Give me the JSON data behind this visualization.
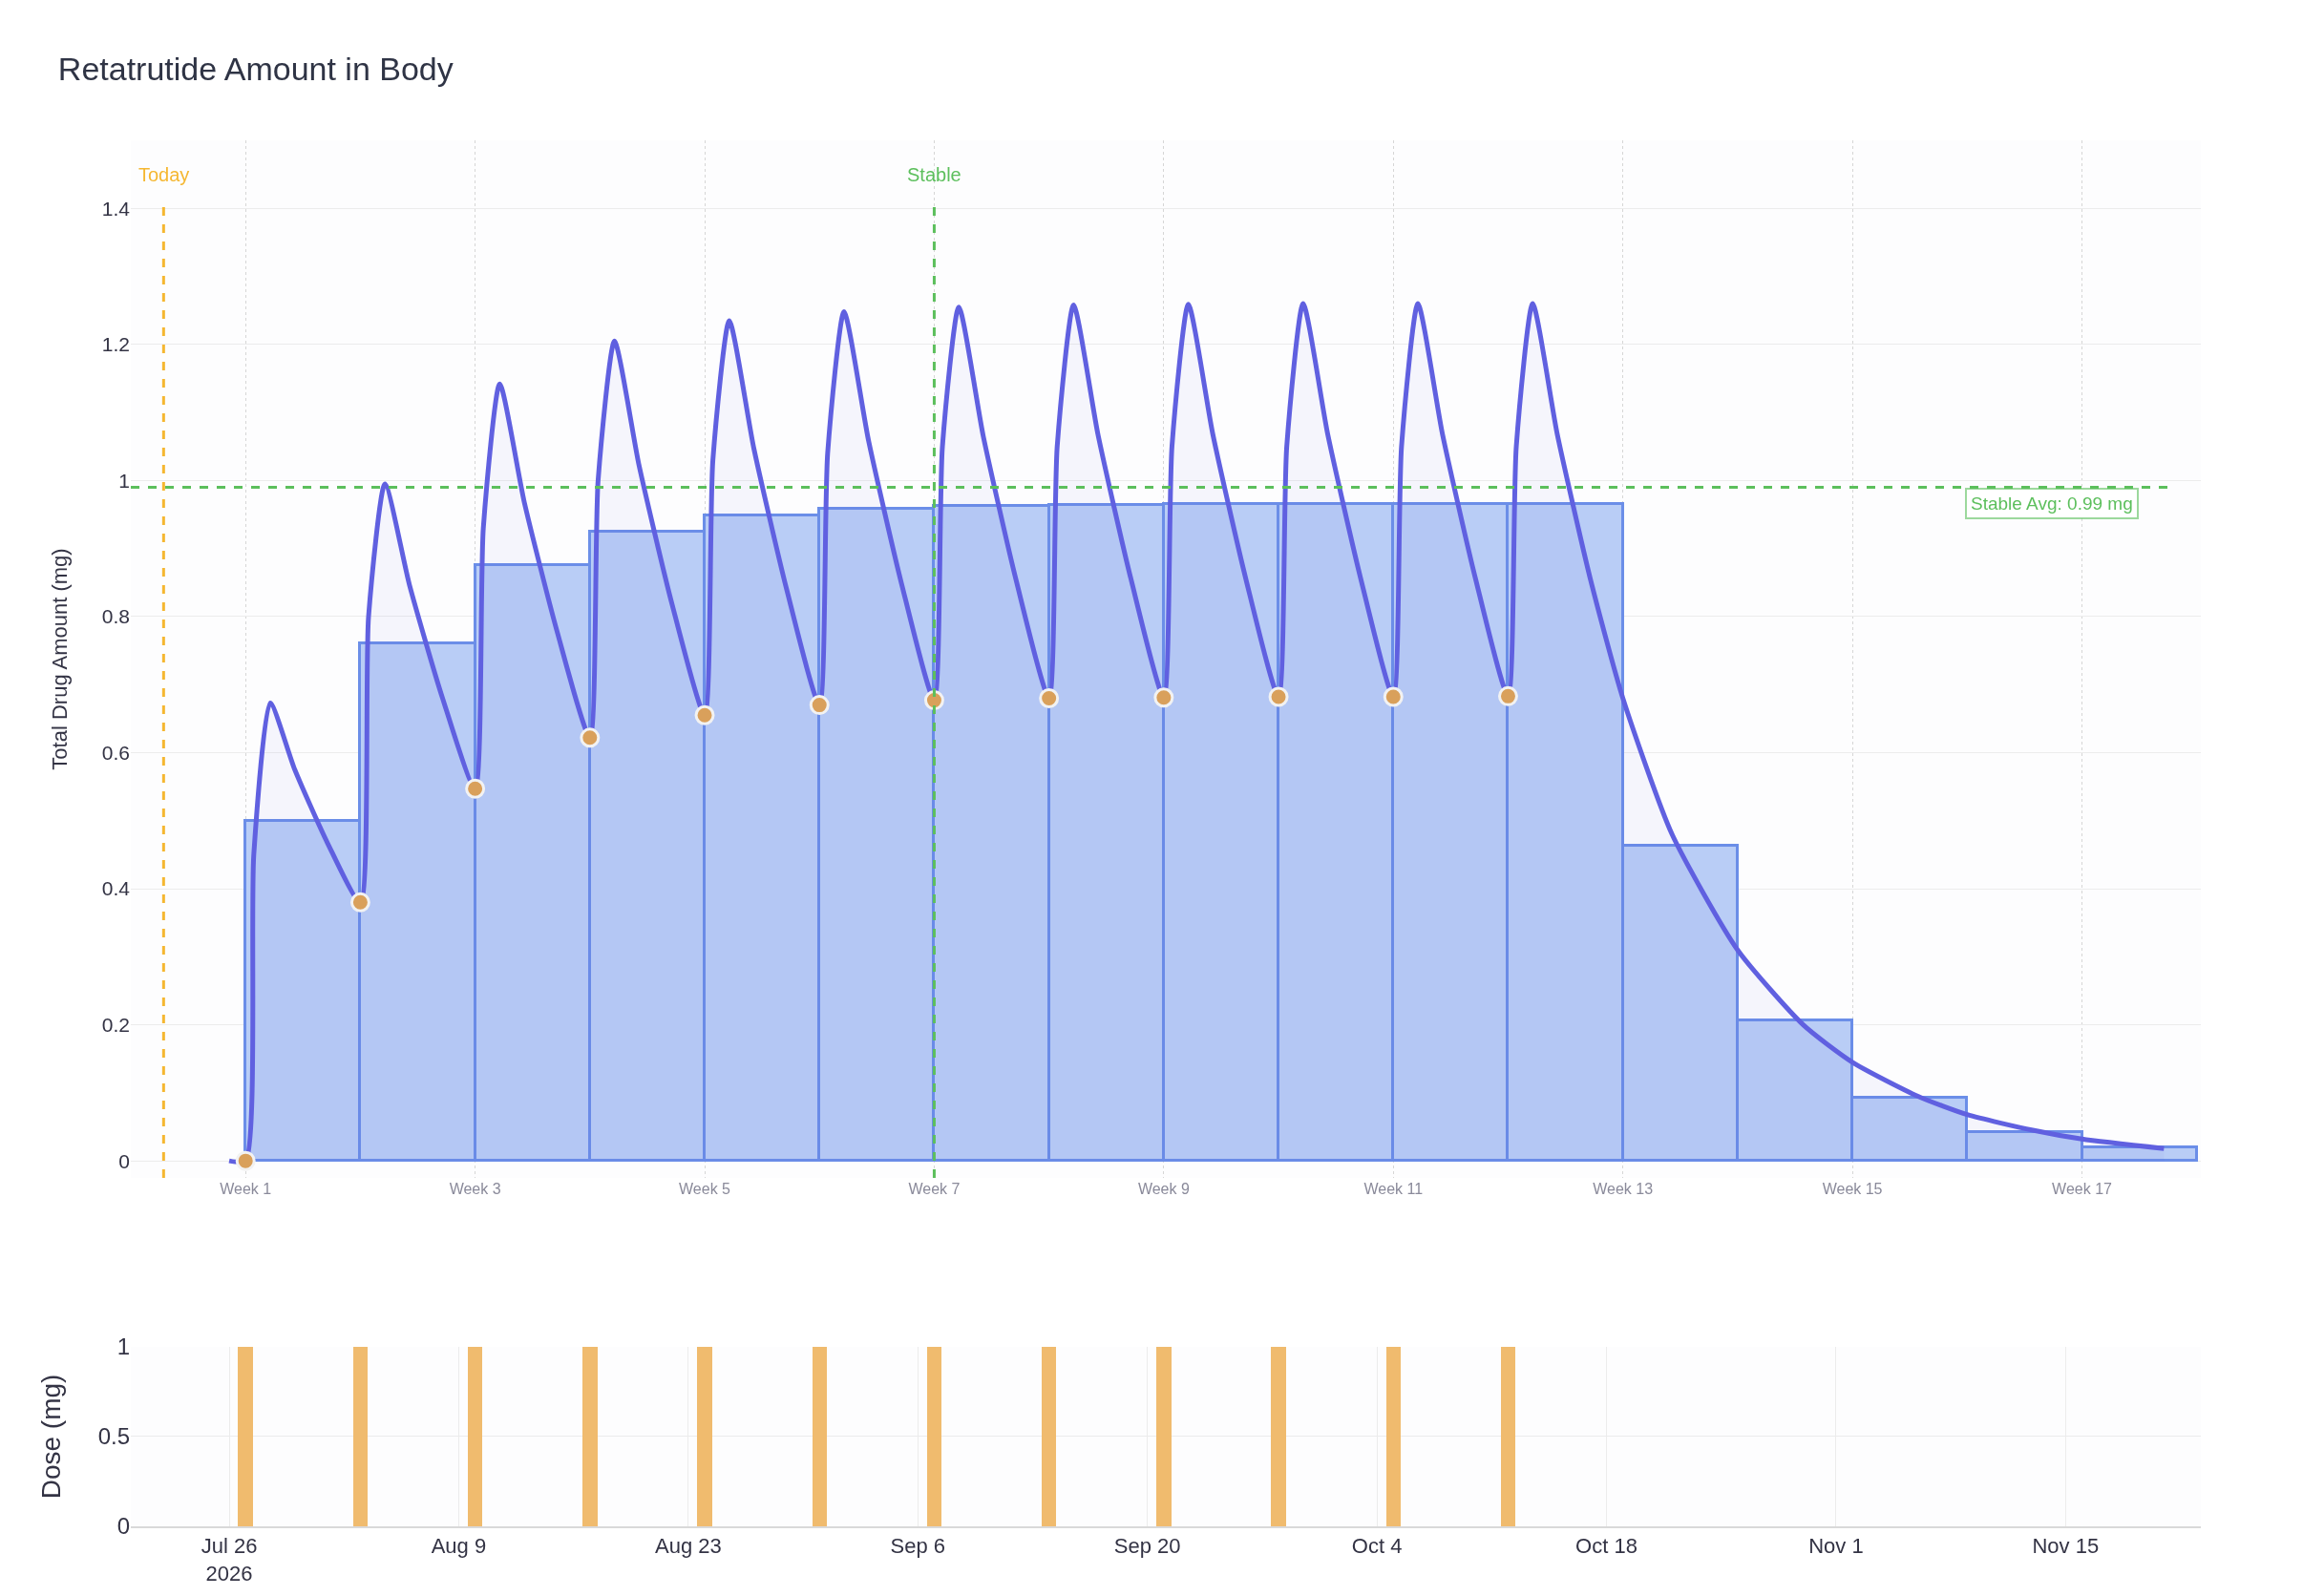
{
  "chart_data": [
    {
      "type": "area",
      "title": "Retatrutide Amount in Body",
      "ylabel": "Total Drug Amount (mg)",
      "xlim": [
        "2026-07-20",
        "2026-11-23T06:00"
      ],
      "ylim": [
        -0.025,
        1.5
      ],
      "xticks": [
        {
          "value": "2026-07-27",
          "label": "Week 1"
        },
        {
          "value": "2026-08-10",
          "label": "Week 3"
        },
        {
          "value": "2026-08-24",
          "label": "Week 5"
        },
        {
          "value": "2026-09-07",
          "label": "Week 7"
        },
        {
          "value": "2026-09-21",
          "label": "Week 9"
        },
        {
          "value": "2026-10-05",
          "label": "Week 11"
        },
        {
          "value": "2026-10-19",
          "label": "Week 13"
        },
        {
          "value": "2026-11-02",
          "label": "Week 15"
        },
        {
          "value": "2026-11-16",
          "label": "Week 17"
        }
      ],
      "yticks": [
        0,
        0.2,
        0.4,
        0.6,
        0.8,
        1,
        1.2,
        1.4
      ],
      "grid": true,
      "series": [
        {
          "type": "histogram",
          "color": "#b9cdf6",
          "bins": [
            "2026-07-27",
            "2026-08-03",
            "2026-08-10",
            "2026-08-17",
            "2026-08-24",
            "2026-08-31",
            "2026-09-07",
            "2026-09-14",
            "2026-09-21",
            "2026-09-28",
            "2026-10-05",
            "2026-10-12",
            "2026-10-19",
            "2026-10-26",
            "2026-11-02",
            "2026-11-09",
            "2026-11-16",
            "2026-11-23"
          ],
          "values": [
            0.5,
            0.76,
            0.875,
            0.925,
            0.948,
            0.958,
            0.962,
            0.964,
            0.965,
            0.965,
            0.965,
            0.965,
            0.463,
            0.207,
            0.093,
            0.042,
            0.02
          ]
        },
        {
          "type": "area",
          "color": "#6060e0",
          "x": [
            "2026-07-26",
            "2026-07-27",
            "2026-07-27T12:00",
            "2026-07-28T12:00",
            "2026-07-30",
            "2026-08-01",
            "2026-08-03",
            "2026-08-03T12:00",
            "2026-08-04T12:00",
            "2026-08-06",
            "2026-08-08",
            "2026-08-10",
            "2026-08-10T12:00",
            "2026-08-11T12:00",
            "2026-08-13",
            "2026-08-15",
            "2026-08-17",
            "2026-08-17T12:00",
            "2026-08-18T12:00",
            "2026-08-20",
            "2026-08-22",
            "2026-08-24",
            "2026-08-24T12:00",
            "2026-08-25T12:00",
            "2026-08-27",
            "2026-08-29",
            "2026-08-31",
            "2026-08-31T12:00",
            "2026-09-01T12:00",
            "2026-09-03",
            "2026-09-05",
            "2026-09-07",
            "2026-09-07T12:00",
            "2026-09-08T12:00",
            "2026-09-10",
            "2026-09-12",
            "2026-09-14",
            "2026-09-14T12:00",
            "2026-09-15T12:00",
            "2026-09-17",
            "2026-09-19",
            "2026-09-21",
            "2026-09-21T12:00",
            "2026-09-22T12:00",
            "2026-09-24",
            "2026-09-26",
            "2026-09-28",
            "2026-09-28T12:00",
            "2026-09-29T12:00",
            "2026-10-01",
            "2026-10-03",
            "2026-10-05",
            "2026-10-05T12:00",
            "2026-10-06T12:00",
            "2026-10-08",
            "2026-10-10",
            "2026-10-12",
            "2026-10-12T12:00",
            "2026-10-13T12:00",
            "2026-10-15",
            "2026-10-17",
            "2026-10-19",
            "2026-10-22",
            "2026-10-26",
            "2026-10-30",
            "2026-11-02",
            "2026-11-06",
            "2026-11-09",
            "2026-11-13",
            "2026-11-16",
            "2026-11-21"
          ],
          "values": [
            0,
            0,
            0.45,
            0.673,
            0.575,
            0.467,
            0.38,
            0.8,
            0.995,
            0.846,
            0.681,
            0.547,
            0.93,
            1.142,
            0.968,
            0.778,
            0.622,
            1.0,
            1.205,
            1.022,
            0.819,
            0.655,
            1.03,
            1.235,
            1.047,
            0.84,
            0.67,
            1.04,
            1.248,
            1.058,
            0.849,
            0.677,
            1.05,
            1.255,
            1.064,
            0.853,
            0.68,
            1.05,
            1.258,
            1.066,
            0.855,
            0.681,
            1.05,
            1.259,
            1.067,
            0.856,
            0.682,
            1.05,
            1.26,
            1.068,
            0.857,
            0.682,
            1.05,
            1.26,
            1.068,
            0.857,
            0.683,
            1.05,
            1.26,
            1.068,
            0.857,
            0.68,
            0.48,
            0.31,
            0.2,
            0.145,
            0.095,
            0.068,
            0.045,
            0.032,
            0.018
          ]
        },
        {
          "type": "scatter",
          "color": "#d9a05b",
          "marker": "circle",
          "x": [
            "2026-07-27",
            "2026-08-03",
            "2026-08-10",
            "2026-08-17",
            "2026-08-24",
            "2026-08-31",
            "2026-09-07",
            "2026-09-14",
            "2026-09-21",
            "2026-09-28",
            "2026-10-05",
            "2026-10-12"
          ],
          "values": [
            0,
            0.38,
            0.547,
            0.622,
            0.655,
            0.67,
            0.677,
            0.68,
            0.681,
            0.682,
            0.682,
            0.683
          ]
        }
      ],
      "ref_lines": [
        {
          "axis": "x",
          "value": "2026-07-22",
          "label": "Today",
          "color": "#f5b731",
          "line_style": "dashed"
        },
        {
          "axis": "x",
          "value": "2026-09-07",
          "label": "Stable",
          "color": "#5cbf5c",
          "line_style": "dashed"
        },
        {
          "axis": "y",
          "value": 0.99,
          "label": "Stable Avg: 0.99 mg",
          "color": "#5cbf5c",
          "line_style": "dashed"
        }
      ]
    },
    {
      "type": "bar",
      "ylabel": "Dose (mg)",
      "xlim": [
        "2026-07-20",
        "2026-11-23T06:00"
      ],
      "ylim": [
        0,
        1
      ],
      "xticks": [
        {
          "value": "2026-07-26",
          "label": "Jul 26\n2026"
        },
        {
          "value": "2026-08-09",
          "label": "Aug 9"
        },
        {
          "value": "2026-08-23",
          "label": "Aug 23"
        },
        {
          "value": "2026-09-06",
          "label": "Sep 6"
        },
        {
          "value": "2026-09-20",
          "label": "Sep 20"
        },
        {
          "value": "2026-10-04",
          "label": "Oct 4"
        },
        {
          "value": "2026-10-18",
          "label": "Oct 18"
        },
        {
          "value": "2026-11-01",
          "label": "Nov 1"
        },
        {
          "value": "2026-11-15",
          "label": "Nov 15"
        }
      ],
      "yticks": [
        0,
        0.5,
        1
      ],
      "grid": true,
      "color": "#f0bb6e",
      "x": [
        "2026-07-27",
        "2026-08-03",
        "2026-08-10",
        "2026-08-17",
        "2026-08-24",
        "2026-08-31",
        "2026-09-07",
        "2026-09-14",
        "2026-09-21",
        "2026-09-28",
        "2026-10-05",
        "2026-10-12"
      ],
      "values": [
        1,
        1,
        1,
        1,
        1,
        1,
        1,
        1,
        1,
        1,
        1,
        1
      ]
    }
  ]
}
